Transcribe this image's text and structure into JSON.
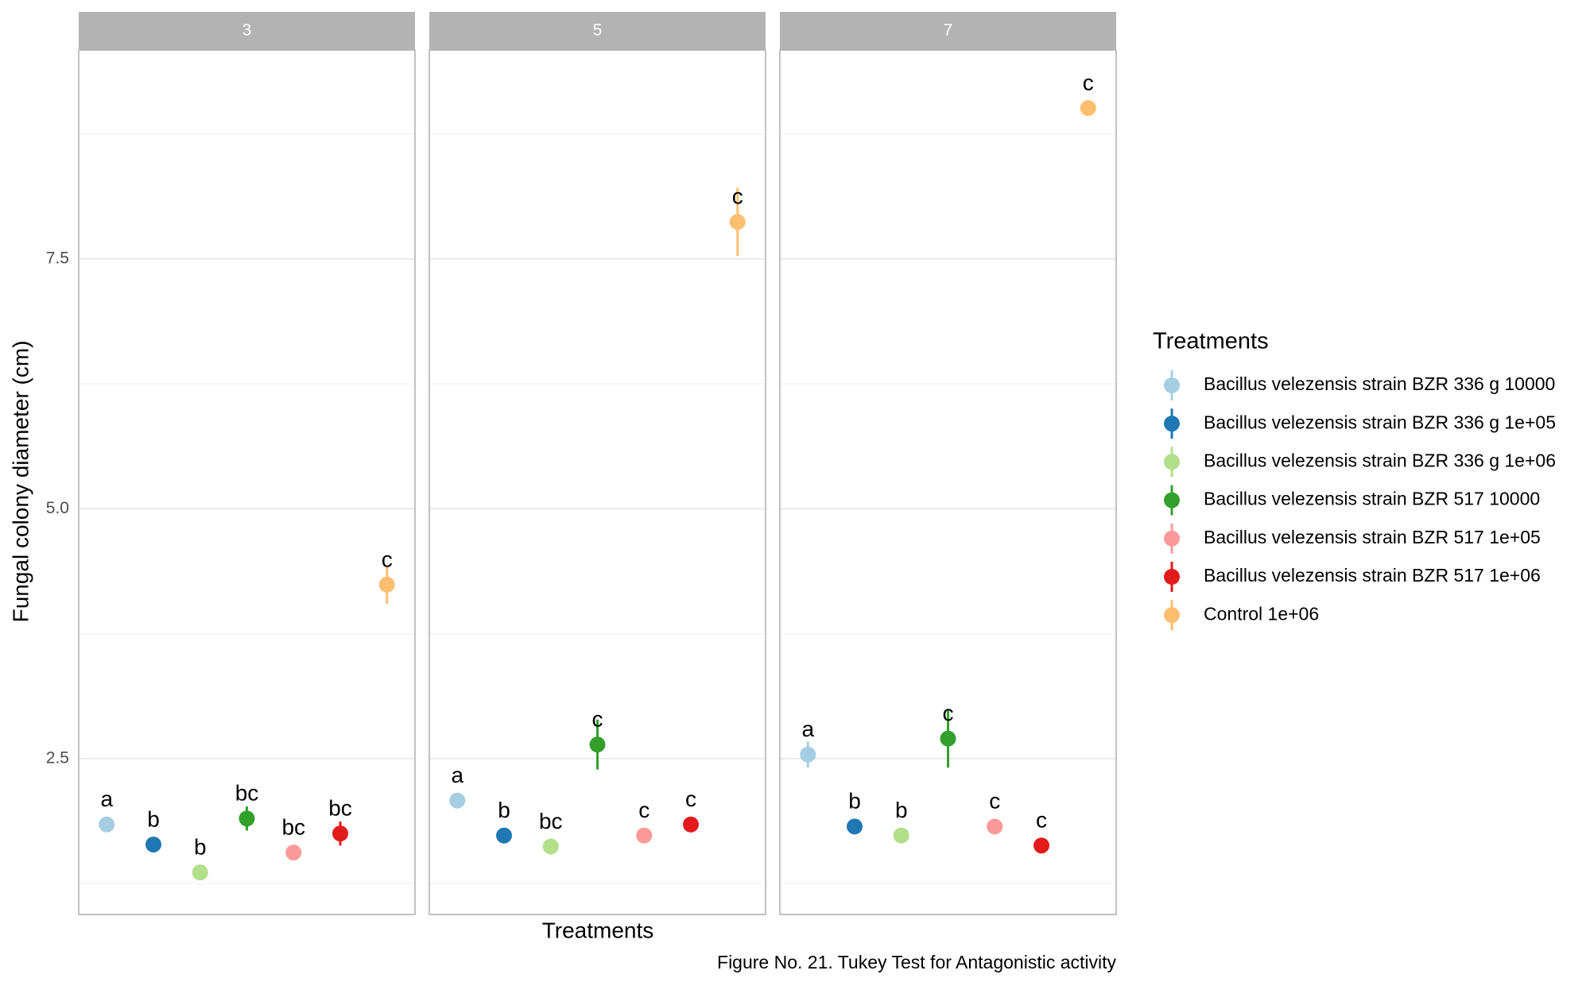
{
  "chart_data": {
    "type": "point",
    "y_label": "Fungal colony diameter (cm)",
    "x_label": "Treatments",
    "caption": "Figure No. 21. Tukey Test for Antagonistic activity",
    "legend_title": "Treatments",
    "legend_position": "right",
    "categories": [
      "Bacillus velezensis strain BZR 336 g 10000",
      "Bacillus velezensis strain BZR 336 g 1e+05",
      "Bacillus velezensis strain BZR 336 g 1e+06",
      "Bacillus velezensis strain BZR 517 10000",
      "Bacillus velezensis strain BZR 517 1e+05",
      "Bacillus velezensis strain BZR 517 1e+06",
      "Control 1e+06"
    ],
    "colors": [
      "#a6cee3",
      "#1f78b4",
      "#b2df8a",
      "#33a02c",
      "#fb9a99",
      "#e31a1c",
      "#fdbf6f"
    ],
    "facets": [
      {
        "name": "3",
        "values": [
          1.84,
          1.64,
          1.36,
          1.9,
          1.56,
          1.75,
          4.24
        ],
        "errors": [
          0.05,
          0.05,
          0.05,
          0.12,
          0.05,
          0.12,
          0.19
        ],
        "labels": [
          "a",
          "b",
          "b",
          "bc",
          "bc",
          "bc",
          "c"
        ]
      },
      {
        "name": "5",
        "values": [
          2.08,
          1.73,
          1.62,
          2.64,
          1.73,
          1.84,
          7.87
        ],
        "errors": [
          0.05,
          0.05,
          0.05,
          0.25,
          0.05,
          0.05,
          0.34
        ],
        "labels": [
          "a",
          "b",
          "bc",
          "c",
          "c",
          "c",
          "c"
        ]
      },
      {
        "name": "7",
        "values": [
          2.54,
          1.82,
          1.73,
          2.7,
          1.82,
          1.63,
          9.01
        ],
        "errors": [
          0.13,
          0.05,
          0.05,
          0.29,
          0.05,
          0.05,
          0.05
        ],
        "labels": [
          "a",
          "b",
          "b",
          "c",
          "c",
          "c",
          "c"
        ]
      }
    ],
    "ylim": [
      0.94,
      9.59
    ],
    "yticks": [
      2.5,
      {
        "value": 5,
        "label": "5.0"
      },
      7.5
    ],
    "minor_yticks": [
      1.25,
      3.75,
      6.25,
      8.75
    ],
    "grid": true
  }
}
